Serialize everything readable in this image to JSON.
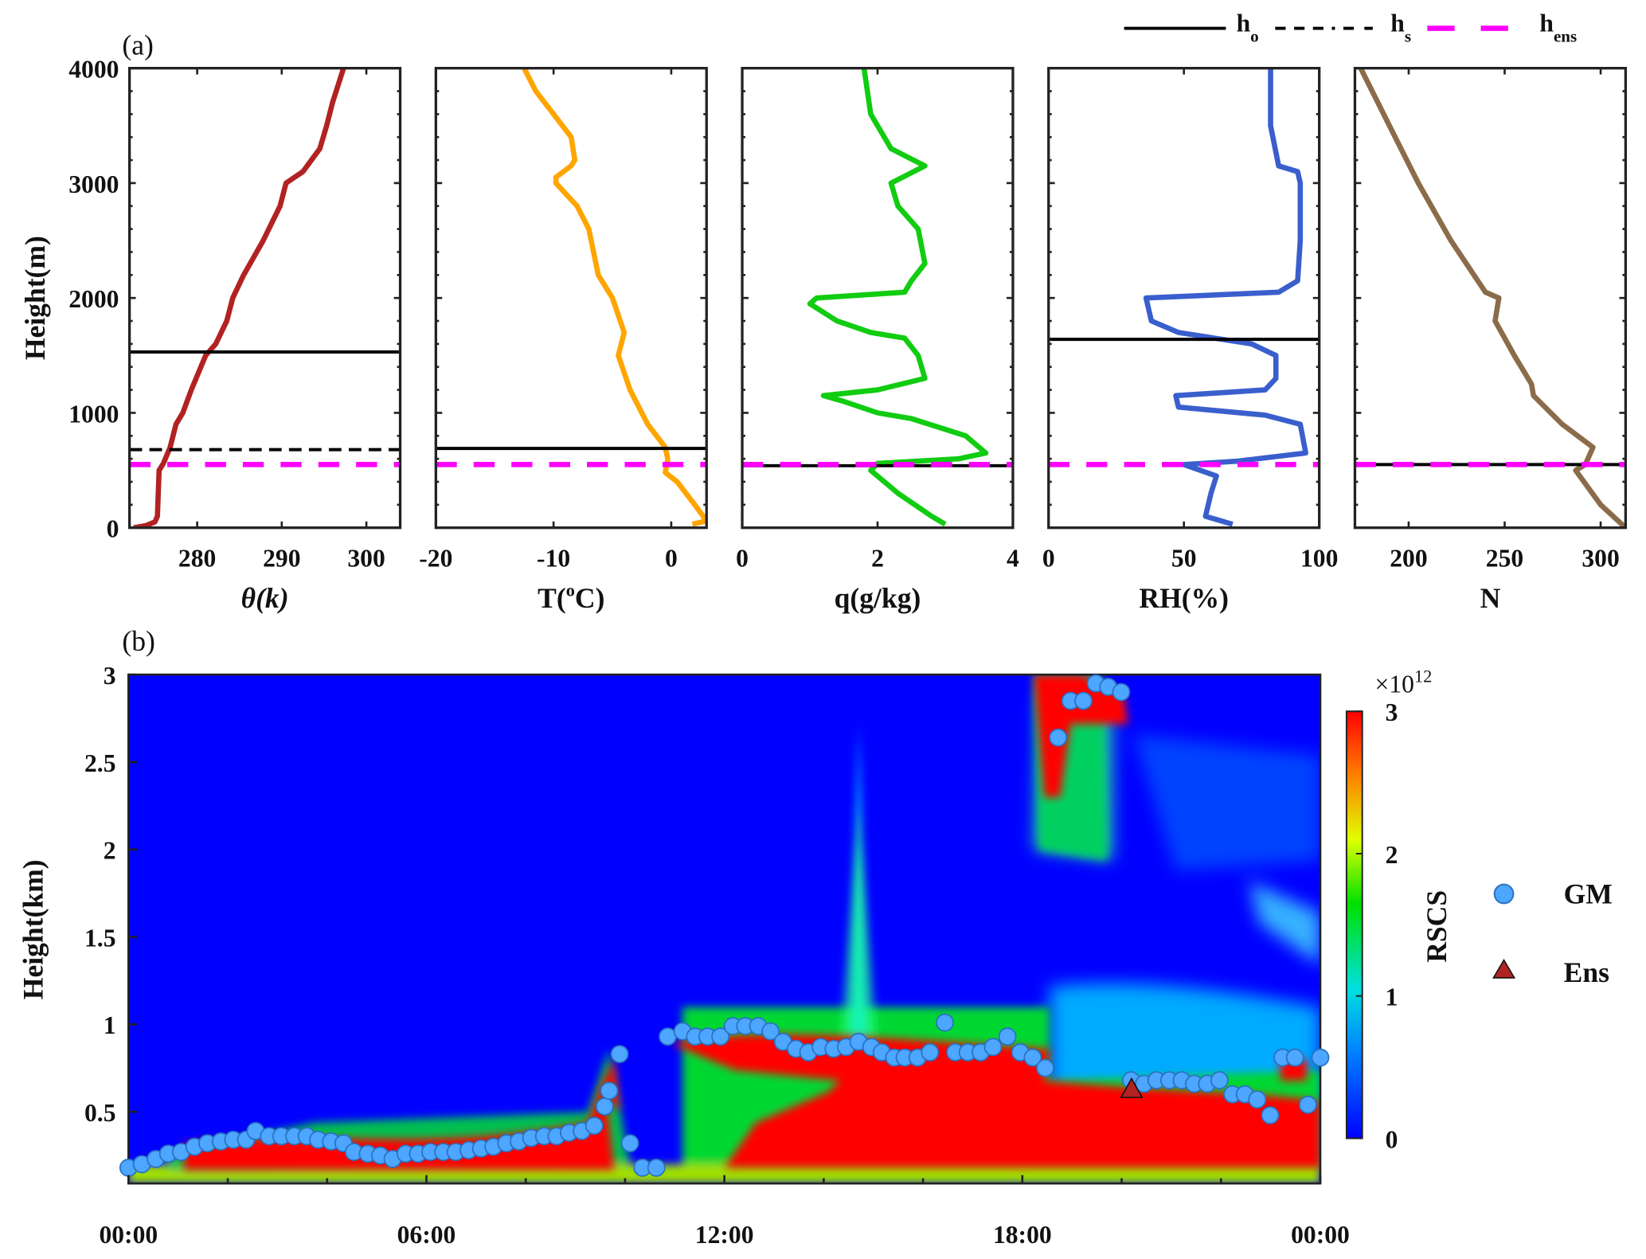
{
  "chart_data": [
    {
      "type": "line",
      "panel_label": "(a)",
      "ylabel": "Height(m)",
      "ylim": [
        0,
        4000
      ],
      "yticks": [
        "0",
        "1000",
        "2000",
        "3000",
        "4000"
      ],
      "legend": {
        "placement": "top-right",
        "entries": [
          {
            "label": "h",
            "sub": "o",
            "style": "solid",
            "color": "#000000"
          },
          {
            "label": "h",
            "sub": "s",
            "style": "dash-dot",
            "color": "#000000"
          },
          {
            "label": "h",
            "sub": "ens",
            "style": "dashed",
            "color": "#ff00ff"
          }
        ]
      },
      "panels": [
        {
          "xlabel": "θ(k)",
          "xlim": [
            272,
            304
          ],
          "xticks": [
            280,
            290,
            300
          ],
          "xtick_labels": [
            "280",
            "290",
            "300"
          ],
          "color": "#b22222",
          "h_o": 1530,
          "h_s": 680,
          "h_ens": 550,
          "profile": [
            [
              0,
              272.5
            ],
            [
              20,
              274
            ],
            [
              50,
              275
            ],
            [
              100,
              275.3
            ],
            [
              500,
              275.5
            ],
            [
              560,
              276
            ],
            [
              700,
              276.8
            ],
            [
              900,
              277.5
            ],
            [
              1000,
              278.3
            ],
            [
              1200,
              279.3
            ],
            [
              1500,
              281
            ],
            [
              1600,
              282.2
            ],
            [
              1800,
              283.5
            ],
            [
              2000,
              284.2
            ],
            [
              2200,
              285.5
            ],
            [
              2500,
              287.8
            ],
            [
              2800,
              289.8
            ],
            [
              3000,
              290.5
            ],
            [
              3050,
              291.5
            ],
            [
              3100,
              292.5
            ],
            [
              3300,
              294.5
            ],
            [
              3500,
              295.3
            ],
            [
              3700,
              296
            ],
            [
              4000,
              297.3
            ]
          ]
        },
        {
          "xlabel": "T(",
          "xlabel_sup": "o",
          "xlabel_end": "C)",
          "xlim": [
            -20,
            3
          ],
          "xticks": [
            -20,
            -10,
            0
          ],
          "xtick_labels": [
            "-20",
            "-10",
            "0"
          ],
          "color": "#ffa500",
          "h_o": 690,
          "h_ens": 550,
          "profile": [
            [
              30,
              1.8
            ],
            [
              60,
              3
            ],
            [
              200,
              2
            ],
            [
              400,
              0.5
            ],
            [
              480,
              -0.5
            ],
            [
              600,
              -0.3
            ],
            [
              700,
              -0.5
            ],
            [
              900,
              -2
            ],
            [
              1000,
              -2.5
            ],
            [
              1200,
              -3.5
            ],
            [
              1500,
              -4.5
            ],
            [
              1700,
              -4
            ],
            [
              2000,
              -5
            ],
            [
              2200,
              -6.2
            ],
            [
              2600,
              -7
            ],
            [
              2800,
              -8
            ],
            [
              3000,
              -9.8
            ],
            [
              3050,
              -9.8
            ],
            [
              3150,
              -8.5
            ],
            [
              3200,
              -8.2
            ],
            [
              3400,
              -8.5
            ],
            [
              3600,
              -10
            ],
            [
              3800,
              -11.5
            ],
            [
              4000,
              -12.5
            ]
          ]
        },
        {
          "xlabel": "q(g/kg)",
          "xlim": [
            0,
            4
          ],
          "xticks": [
            0,
            2,
            4
          ],
          "xtick_labels": [
            "0",
            "2",
            "4"
          ],
          "color": "#11cc11",
          "h_o": 540,
          "h_ens": 550,
          "profile": [
            [
              30,
              3
            ],
            [
              100,
              2.8
            ],
            [
              300,
              2.3
            ],
            [
              500,
              1.9
            ],
            [
              560,
              2
            ],
            [
              600,
              3.2
            ],
            [
              650,
              3.6
            ],
            [
              800,
              3.3
            ],
            [
              950,
              2.5
            ],
            [
              1000,
              2
            ],
            [
              1100,
              1.5
            ],
            [
              1150,
              1.2
            ],
            [
              1200,
              2
            ],
            [
              1300,
              2.7
            ],
            [
              1500,
              2.6
            ],
            [
              1650,
              2.4
            ],
            [
              1700,
              1.9
            ],
            [
              1800,
              1.4
            ],
            [
              1950,
              1.0
            ],
            [
              2000,
              1.1
            ],
            [
              2050,
              2.4
            ],
            [
              2150,
              2.5
            ],
            [
              2300,
              2.7
            ],
            [
              2600,
              2.6
            ],
            [
              2800,
              2.3
            ],
            [
              3000,
              2.2
            ],
            [
              3150,
              2.7
            ],
            [
              3300,
              2.2
            ],
            [
              3600,
              1.9
            ],
            [
              4000,
              1.8
            ]
          ]
        },
        {
          "xlabel": "RH(%)",
          "xlim": [
            0,
            100
          ],
          "xticks": [
            0,
            50,
            100
          ],
          "xtick_labels": [
            "0",
            "50",
            "100"
          ],
          "color": "#3a5fcd",
          "h_o": 1640,
          "h_ens": 550,
          "profile": [
            [
              30,
              68
            ],
            [
              100,
              58
            ],
            [
              300,
              60
            ],
            [
              450,
              62
            ],
            [
              550,
              50
            ],
            [
              580,
              70
            ],
            [
              650,
              95
            ],
            [
              900,
              93
            ],
            [
              980,
              80
            ],
            [
              1050,
              48
            ],
            [
              1150,
              47
            ],
            [
              1200,
              80
            ],
            [
              1300,
              84
            ],
            [
              1500,
              84
            ],
            [
              1600,
              75
            ],
            [
              1700,
              48
            ],
            [
              1800,
              38
            ],
            [
              2000,
              36
            ],
            [
              2050,
              85
            ],
            [
              2150,
              92
            ],
            [
              2500,
              93
            ],
            [
              3000,
              93
            ],
            [
              3100,
              92
            ],
            [
              3150,
              85
            ],
            [
              3500,
              82
            ],
            [
              3800,
              82
            ],
            [
              4000,
              82
            ]
          ]
        },
        {
          "xlabel": "N",
          "xlim": [
            172,
            313
          ],
          "xticks": [
            200,
            250,
            300
          ],
          "xtick_labels": [
            "200",
            "250",
            "300"
          ],
          "color": "#8b6c4a",
          "h_o": 550,
          "h_ens": 550,
          "profile": [
            [
              0,
              313
            ],
            [
              200,
              300
            ],
            [
              500,
              287
            ],
            [
              550,
              292
            ],
            [
              700,
              296
            ],
            [
              900,
              280
            ],
            [
              1150,
              265
            ],
            [
              1250,
              264
            ],
            [
              1500,
              255
            ],
            [
              1800,
              245
            ],
            [
              2000,
              247
            ],
            [
              2050,
              240
            ],
            [
              2500,
              222
            ],
            [
              3000,
              205
            ],
            [
              3500,
              190
            ],
            [
              4000,
              175
            ]
          ]
        }
      ]
    },
    {
      "type": "heatmap",
      "panel_label": "(b)",
      "ylabel": "Height(km)",
      "xlabel": "",
      "xlim": [
        0,
        24
      ],
      "ylim": [
        0.09,
        3
      ],
      "xticks": [
        0,
        6,
        12,
        18,
        24
      ],
      "xtick_labels": [
        "00:00",
        "06:00",
        "12:00",
        "18:00",
        "00:00"
      ],
      "yticks": [
        0.5,
        1,
        1.5,
        2,
        2.5,
        3
      ],
      "ytick_labels": [
        "0.5",
        "1",
        "1.5",
        "2",
        "2.5",
        "3"
      ],
      "colorbar": {
        "label": "RSCS",
        "multiplier": "×10",
        "exponent": "12",
        "range": [
          0,
          3
        ],
        "ticks": [
          "0",
          "1",
          "2",
          "3"
        ]
      },
      "legend": {
        "placement": "right",
        "entries": [
          {
            "label": "GM",
            "marker": "circle",
            "color": "#4da6ff"
          },
          {
            "label": "Ens",
            "marker": "triangle",
            "color": "#b22222"
          }
        ]
      },
      "ens": [
        [
          20.2,
          0.63
        ]
      ],
      "gm": [
        [
          0,
          0.18
        ],
        [
          0.27,
          0.2
        ],
        [
          0.55,
          0.23
        ],
        [
          0.8,
          0.26
        ],
        [
          1.06,
          0.27
        ],
        [
          1.33,
          0.3
        ],
        [
          1.59,
          0.32
        ],
        [
          1.86,
          0.33
        ],
        [
          2.11,
          0.34
        ],
        [
          2.37,
          0.34
        ],
        [
          2.56,
          0.39
        ],
        [
          2.83,
          0.36
        ],
        [
          3.08,
          0.36
        ],
        [
          3.34,
          0.36
        ],
        [
          3.59,
          0.36
        ],
        [
          3.82,
          0.34
        ],
        [
          4.08,
          0.33
        ],
        [
          4.33,
          0.32
        ],
        [
          4.54,
          0.27
        ],
        [
          4.82,
          0.26
        ],
        [
          5.07,
          0.25
        ],
        [
          5.32,
          0.23
        ],
        [
          5.58,
          0.26
        ],
        [
          5.83,
          0.26
        ],
        [
          6.08,
          0.27
        ],
        [
          6.34,
          0.27
        ],
        [
          6.59,
          0.27
        ],
        [
          6.85,
          0.28
        ],
        [
          7.1,
          0.29
        ],
        [
          7.35,
          0.3
        ],
        [
          7.61,
          0.32
        ],
        [
          7.86,
          0.33
        ],
        [
          8.11,
          0.35
        ],
        [
          8.37,
          0.36
        ],
        [
          8.62,
          0.36
        ],
        [
          8.87,
          0.38
        ],
        [
          9.13,
          0.39
        ],
        [
          9.38,
          0.42
        ],
        [
          9.59,
          0.53
        ],
        [
          9.68,
          0.62
        ],
        [
          9.89,
          0.83
        ],
        [
          10.1,
          0.32
        ],
        [
          10.35,
          0.18
        ],
        [
          10.63,
          0.18
        ],
        [
          10.86,
          0.93
        ],
        [
          11.16,
          0.96
        ],
        [
          11.41,
          0.93
        ],
        [
          11.66,
          0.93
        ],
        [
          11.92,
          0.93
        ],
        [
          12.17,
          0.99
        ],
        [
          12.42,
          0.99
        ],
        [
          12.68,
          0.99
        ],
        [
          12.93,
          0.96
        ],
        [
          13.18,
          0.9
        ],
        [
          13.44,
          0.86
        ],
        [
          13.69,
          0.84
        ],
        [
          13.94,
          0.87
        ],
        [
          14.2,
          0.86
        ],
        [
          14.45,
          0.87
        ],
        [
          14.7,
          0.9
        ],
        [
          14.96,
          0.87
        ],
        [
          15.17,
          0.84
        ],
        [
          15.42,
          0.81
        ],
        [
          15.63,
          0.81
        ],
        [
          15.89,
          0.81
        ],
        [
          16.14,
          0.84
        ],
        [
          16.44,
          1.01
        ],
        [
          16.65,
          0.84
        ],
        [
          16.9,
          0.84
        ],
        [
          17.16,
          0.84
        ],
        [
          17.41,
          0.87
        ],
        [
          17.7,
          0.93
        ],
        [
          17.96,
          0.84
        ],
        [
          18.21,
          0.81
        ],
        [
          18.46,
          0.75
        ],
        [
          20.19,
          0.68
        ],
        [
          20.45,
          0.66
        ],
        [
          20.7,
          0.68
        ],
        [
          20.96,
          0.68
        ],
        [
          21.21,
          0.68
        ],
        [
          21.46,
          0.66
        ],
        [
          21.72,
          0.66
        ],
        [
          21.97,
          0.68
        ],
        [
          22.23,
          0.6
        ],
        [
          22.48,
          0.6
        ],
        [
          22.73,
          0.57
        ],
        [
          22.99,
          0.48
        ],
        [
          23.24,
          0.81
        ],
        [
          23.49,
          0.81
        ],
        [
          23.75,
          0.54
        ],
        [
          24,
          0.81
        ],
        [
          18.72,
          2.64
        ],
        [
          18.97,
          2.85
        ],
        [
          19.23,
          2.85
        ],
        [
          19.48,
          2.95
        ],
        [
          19.73,
          2.93
        ],
        [
          19.99,
          2.9
        ]
      ]
    }
  ]
}
